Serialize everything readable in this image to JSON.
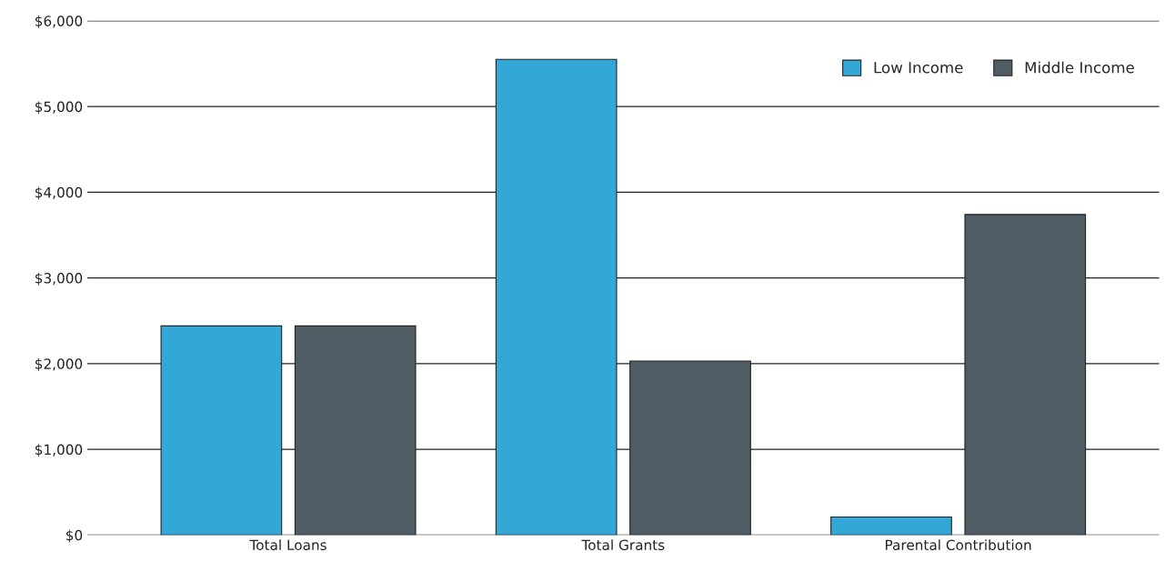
{
  "chart_data": {
    "type": "bar",
    "categories": [
      "Total Loans",
      "Total Grants",
      "Parental Contribution"
    ],
    "series": [
      {
        "name": "Low Income",
        "color": "#33a8d6",
        "values": [
          2440,
          5550,
          210
        ]
      },
      {
        "name": "Middle Income",
        "color": "#505c64",
        "values": [
          2440,
          2030,
          3740
        ]
      }
    ],
    "ylim": [
      0,
      6000
    ],
    "yticks": [
      {
        "value": 0,
        "label": "$0"
      },
      {
        "value": 1000,
        "label": "$1,000"
      },
      {
        "value": 2000,
        "label": "$2,000"
      },
      {
        "value": 3000,
        "label": "$3,000"
      },
      {
        "value": 4000,
        "label": "$4,000"
      },
      {
        "value": 5000,
        "label": "$5,000"
      },
      {
        "value": 6000,
        "label": "$6,000"
      }
    ],
    "grid": "y",
    "legend": "top right"
  }
}
